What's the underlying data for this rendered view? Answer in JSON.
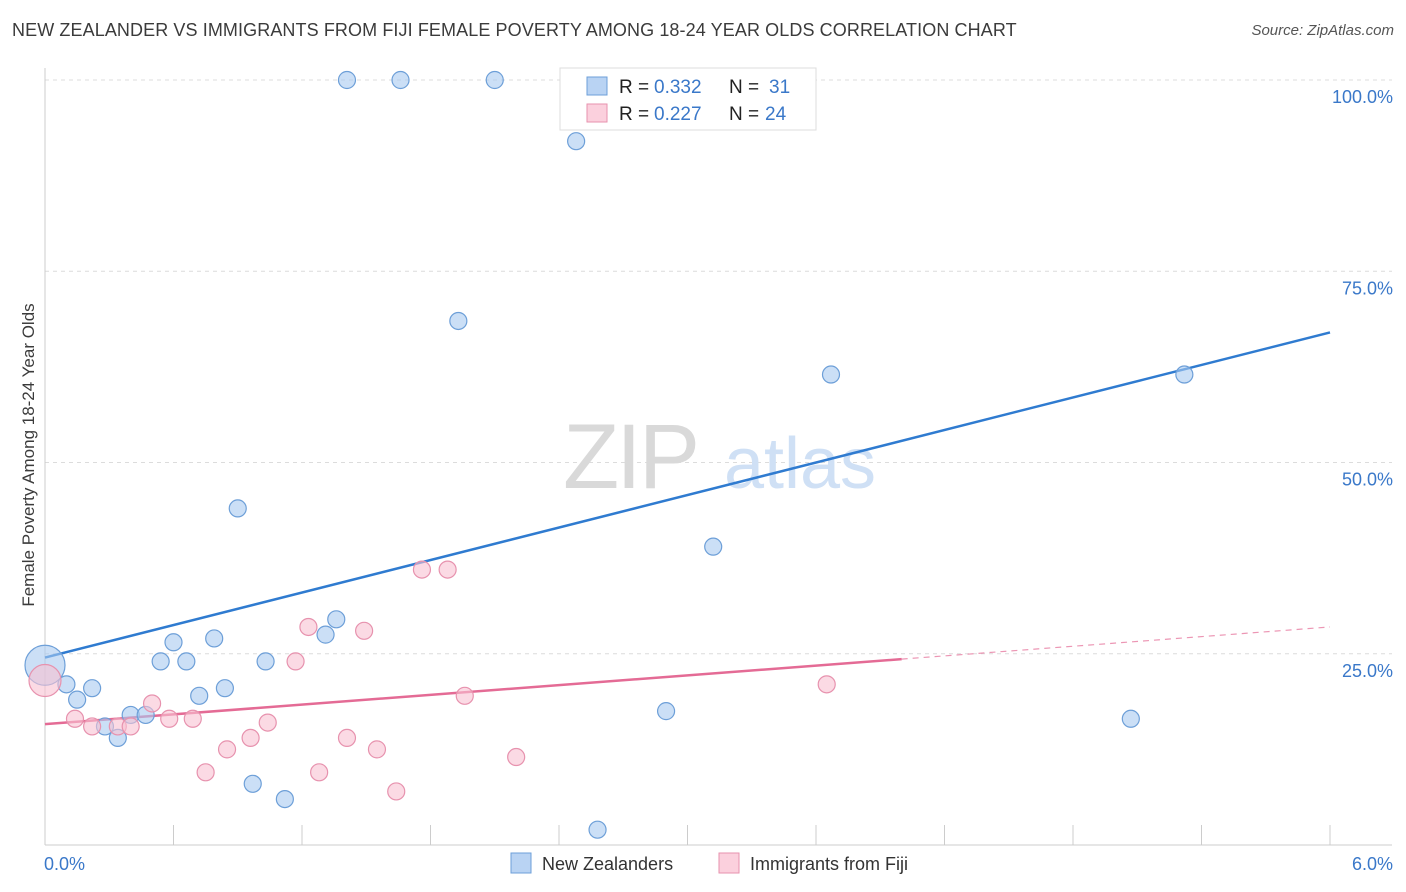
{
  "chart_data": {
    "type": "scatter",
    "title": "NEW ZEALANDER VS IMMIGRANTS FROM FIJI FEMALE POVERTY AMONG 18-24 YEAR OLDS CORRELATION CHART",
    "source": "Source: ZipAtlas.com",
    "xlabel": "",
    "ylabel": "Female Poverty Among 18-24 Year Olds",
    "xlim": [
      0,
      6
    ],
    "ylim": [
      0,
      100
    ],
    "x_tick_labels": [
      "0.0%",
      "6.0%"
    ],
    "y_ticks": [
      {
        "value": 25,
        "label": "25.0%"
      },
      {
        "value": 50,
        "label": "50.0%"
      },
      {
        "value": 75,
        "label": "75.0%"
      },
      {
        "value": 100,
        "label": "100.0%"
      }
    ],
    "grid": true,
    "watermark": {
      "zip": "ZIP",
      "atlas": "atlas"
    },
    "legend_stats": [
      {
        "r_label": "R =",
        "r_value": "0.332",
        "n_label": "N =",
        "n_value": "31"
      },
      {
        "r_label": "R =",
        "r_value": "0.227",
        "n_label": "N =",
        "n_value": "24"
      }
    ],
    "series": [
      {
        "name": "New Zealanders",
        "color": "#a9c9f0",
        "stroke": "#6d9fd8",
        "line_color": "#2f7bd0",
        "trend": {
          "x0": 0,
          "y0": 24.5,
          "x1": 6,
          "y1": 67
        },
        "points": [
          {
            "x": 0.0,
            "y": 23.5,
            "r": 20
          },
          {
            "x": 0.1,
            "y": 21
          },
          {
            "x": 0.15,
            "y": 19
          },
          {
            "x": 0.22,
            "y": 20.5
          },
          {
            "x": 0.28,
            "y": 15.5
          },
          {
            "x": 0.34,
            "y": 14
          },
          {
            "x": 0.4,
            "y": 17
          },
          {
            "x": 0.47,
            "y": 17
          },
          {
            "x": 0.54,
            "y": 24
          },
          {
            "x": 0.6,
            "y": 26.5
          },
          {
            "x": 0.66,
            "y": 24
          },
          {
            "x": 0.72,
            "y": 19.5
          },
          {
            "x": 0.79,
            "y": 27
          },
          {
            "x": 0.84,
            "y": 20.5
          },
          {
            "x": 0.9,
            "y": 44
          },
          {
            "x": 0.97,
            "y": 8
          },
          {
            "x": 1.03,
            "y": 24
          },
          {
            "x": 1.12,
            "y": 6
          },
          {
            "x": 1.31,
            "y": 27.5
          },
          {
            "x": 1.36,
            "y": 29.5
          },
          {
            "x": 1.41,
            "y": 100
          },
          {
            "x": 1.66,
            "y": 100
          },
          {
            "x": 1.93,
            "y": 68.5
          },
          {
            "x": 2.1,
            "y": 100
          },
          {
            "x": 2.48,
            "y": 92
          },
          {
            "x": 2.58,
            "y": 2
          },
          {
            "x": 2.9,
            "y": 17.5
          },
          {
            "x": 3.12,
            "y": 39
          },
          {
            "x": 3.67,
            "y": 61.5
          },
          {
            "x": 5.07,
            "y": 16.5
          },
          {
            "x": 5.32,
            "y": 61.5
          }
        ]
      },
      {
        "name": "Immigrants from Fiji",
        "color": "#f9c2d2",
        "stroke": "#e792ae",
        "line_color": "#e46b95",
        "trend": {
          "x0": 0,
          "y0": 15.8,
          "x1": 4,
          "y1": 24.3
        },
        "trend_dashed": {
          "x0": 4,
          "y0": 24.3,
          "x1": 6,
          "y1": 28.5
        },
        "points": [
          {
            "x": 0.0,
            "y": 21.5,
            "r": 16
          },
          {
            "x": 0.14,
            "y": 16.5
          },
          {
            "x": 0.22,
            "y": 15.5
          },
          {
            "x": 0.34,
            "y": 15.5
          },
          {
            "x": 0.4,
            "y": 15.5
          },
          {
            "x": 0.5,
            "y": 18.5
          },
          {
            "x": 0.58,
            "y": 16.5
          },
          {
            "x": 0.69,
            "y": 16.5
          },
          {
            "x": 0.75,
            "y": 9.5
          },
          {
            "x": 0.85,
            "y": 12.5
          },
          {
            "x": 0.96,
            "y": 14
          },
          {
            "x": 1.04,
            "y": 16
          },
          {
            "x": 1.17,
            "y": 24
          },
          {
            "x": 1.23,
            "y": 28.5
          },
          {
            "x": 1.28,
            "y": 9.5
          },
          {
            "x": 1.41,
            "y": 14
          },
          {
            "x": 1.49,
            "y": 28
          },
          {
            "x": 1.55,
            "y": 12.5
          },
          {
            "x": 1.64,
            "y": 7
          },
          {
            "x": 1.76,
            "y": 36
          },
          {
            "x": 1.88,
            "y": 36
          },
          {
            "x": 1.96,
            "y": 19.5
          },
          {
            "x": 2.2,
            "y": 11.5
          },
          {
            "x": 3.65,
            "y": 21
          }
        ]
      }
    ]
  }
}
